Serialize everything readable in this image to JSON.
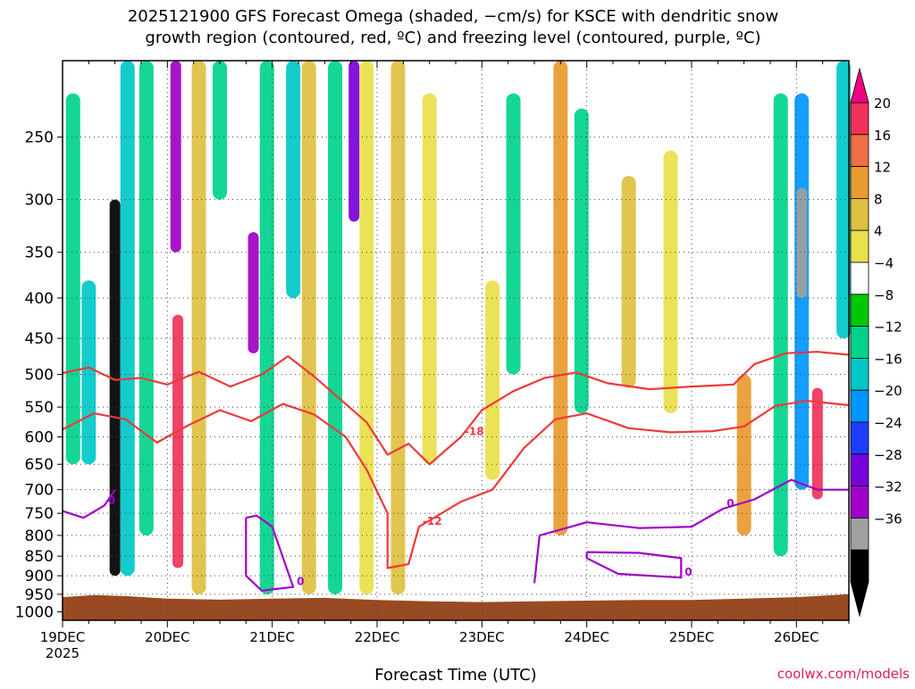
{
  "chart_data": {
    "type": "heatmap",
    "title_lines": [
      "2025121900 GFS Forecast Omega (shaded, −cm/s) for KSCE with dendritic snow",
      "growth region (contoured, red, ºC) and freezing level (contoured, purple, ºC)"
    ],
    "xlabel": "Forecast Time (UTC)",
    "x_ticks": [
      "19DEC",
      "20DEC",
      "21DEC",
      "22DEC",
      "23DEC",
      "24DEC",
      "25DEC",
      "26DEC"
    ],
    "x_year": "2025",
    "x_range_days": [
      19.0,
      26.5
    ],
    "y_ticks": [
      250,
      300,
      350,
      400,
      450,
      500,
      550,
      600,
      650,
      700,
      750,
      800,
      850,
      900,
      950,
      1000
    ],
    "y_range_hpa": [
      200,
      1025
    ],
    "y_scale": "log-pressure",
    "grid": "dotted",
    "colorbar": {
      "labels": [
        "20",
        "16",
        "12",
        "8",
        "4",
        "−4",
        "−8",
        "−12",
        "−16",
        "−20",
        "−24",
        "−28",
        "−32",
        "−36"
      ],
      "colors": [
        "#f0325a",
        "#f06e46",
        "#e99a2e",
        "#e0c040",
        "#eae04a",
        "#ffffff",
        "#00c800",
        "#00d28c",
        "#00c8c8",
        "#0096ff",
        "#1e3cff",
        "#7800dc",
        "#a000c8",
        "#a0a0a0",
        "#000000"
      ],
      "top_arrow_color": "#f00082",
      "bottom_arrow_color": "#000000"
    },
    "omega_series": [
      {
        "day": 19.1,
        "p_top": 220,
        "p_bot": 650,
        "value": -10
      },
      {
        "day": 19.25,
        "p_top": 380,
        "p_bot": 650,
        "value": -14
      },
      {
        "day": 19.5,
        "p_top": 300,
        "p_bot": 900,
        "value": -36
      },
      {
        "day": 19.62,
        "p_top": 200,
        "p_bot": 900,
        "value": -14
      },
      {
        "day": 19.8,
        "p_top": 200,
        "p_bot": 800,
        "value": -8
      },
      {
        "day": 20.08,
        "p_top": 200,
        "p_bot": 350,
        "value": -28
      },
      {
        "day": 20.1,
        "p_top": 420,
        "p_bot": 880,
        "value": 20
      },
      {
        "day": 20.3,
        "p_top": 200,
        "p_bot": 950,
        "value": 8
      },
      {
        "day": 20.5,
        "p_top": 200,
        "p_bot": 300,
        "value": -8
      },
      {
        "day": 20.82,
        "p_top": 330,
        "p_bot": 470,
        "value": -28
      },
      {
        "day": 20.95,
        "p_top": 200,
        "p_bot": 950,
        "value": -8
      },
      {
        "day": 21.2,
        "p_top": 200,
        "p_bot": 400,
        "value": -12
      },
      {
        "day": 21.35,
        "p_top": 200,
        "p_bot": 950,
        "value": 8
      },
      {
        "day": 21.6,
        "p_top": 200,
        "p_bot": 950,
        "value": -8
      },
      {
        "day": 21.78,
        "p_top": 200,
        "p_bot": 320,
        "value": -24
      },
      {
        "day": 21.9,
        "p_top": 200,
        "p_bot": 950,
        "value": 4
      },
      {
        "day": 22.2,
        "p_top": 200,
        "p_bot": 950,
        "value": 8
      },
      {
        "day": 22.5,
        "p_top": 220,
        "p_bot": 650,
        "value": 4
      },
      {
        "day": 23.1,
        "p_top": 380,
        "p_bot": 680,
        "value": 4
      },
      {
        "day": 23.3,
        "p_top": 220,
        "p_bot": 500,
        "value": -8
      },
      {
        "day": 23.75,
        "p_top": 200,
        "p_bot": 800,
        "value": 12
      },
      {
        "day": 23.95,
        "p_top": 230,
        "p_bot": 560,
        "value": -8
      },
      {
        "day": 24.4,
        "p_top": 280,
        "p_bot": 520,
        "value": 8
      },
      {
        "day": 24.8,
        "p_top": 260,
        "p_bot": 560,
        "value": 4
      },
      {
        "day": 25.5,
        "p_top": 500,
        "p_bot": 800,
        "value": 12
      },
      {
        "day": 25.85,
        "p_top": 220,
        "p_bot": 850,
        "value": -8
      },
      {
        "day": 26.05,
        "p_top": 220,
        "p_bot": 700,
        "value": -16
      },
      {
        "day": 26.05,
        "p_top": 290,
        "p_bot": 400,
        "value": -32
      },
      {
        "day": 26.2,
        "p_top": 520,
        "p_bot": 720,
        "value": 20
      },
      {
        "day": 26.45,
        "p_top": 200,
        "p_bot": 450,
        "value": -12
      }
    ],
    "contours": [
      {
        "label": "-18",
        "color": "#ee3a3a",
        "points": [
          [
            19.0,
            498
          ],
          [
            19.25,
            490
          ],
          [
            19.5,
            508
          ],
          [
            19.75,
            505
          ],
          [
            20.0,
            515
          ],
          [
            20.3,
            496
          ],
          [
            20.6,
            518
          ],
          [
            20.9,
            500
          ],
          [
            21.15,
            474
          ],
          [
            21.4,
            503
          ],
          [
            21.7,
            545
          ],
          [
            21.9,
            575
          ],
          [
            22.1,
            632
          ],
          [
            22.3,
            612
          ],
          [
            22.5,
            650
          ],
          [
            22.8,
            600
          ],
          [
            23.0,
            555
          ],
          [
            23.3,
            525
          ],
          [
            23.6,
            505
          ],
          [
            23.9,
            497
          ],
          [
            24.2,
            513
          ],
          [
            24.6,
            522
          ],
          [
            25.0,
            518
          ],
          [
            25.4,
            515
          ],
          [
            25.6,
            485
          ],
          [
            25.9,
            470
          ],
          [
            26.2,
            468
          ],
          [
            26.5,
            472
          ]
        ]
      },
      {
        "label": "-12",
        "color": "#ee3a3a",
        "points": [
          [
            19.0,
            587
          ],
          [
            19.3,
            560
          ],
          [
            19.6,
            570
          ],
          [
            19.9,
            610
          ],
          [
            20.2,
            580
          ],
          [
            20.5,
            555
          ],
          [
            20.8,
            573
          ],
          [
            21.1,
            545
          ],
          [
            21.4,
            562
          ],
          [
            21.7,
            600
          ],
          [
            21.9,
            660
          ],
          [
            22.1,
            750
          ],
          [
            22.1,
            880
          ],
          [
            22.3,
            870
          ],
          [
            22.4,
            780
          ],
          [
            22.8,
            725
          ],
          [
            23.1,
            700
          ],
          [
            23.4,
            620
          ],
          [
            23.7,
            570
          ],
          [
            24.0,
            560
          ],
          [
            24.4,
            585
          ],
          [
            24.8,
            592
          ],
          [
            25.2,
            590
          ],
          [
            25.5,
            582
          ],
          [
            25.8,
            548
          ],
          [
            26.1,
            540
          ],
          [
            26.5,
            547
          ]
        ]
      },
      {
        "label": "0",
        "color": "#a000c8",
        "points": [
          [
            19.0,
            745
          ],
          [
            19.2,
            760
          ],
          [
            19.4,
            733
          ],
          [
            19.5,
            700
          ]
        ]
      },
      {
        "label": "0",
        "color": "#a000c8",
        "points": [
          [
            20.75,
            760
          ],
          [
            20.75,
            900
          ],
          [
            20.9,
            940
          ],
          [
            21.2,
            930
          ],
          [
            21.0,
            780
          ],
          [
            20.85,
            755
          ],
          [
            20.75,
            760
          ]
        ]
      },
      {
        "label": "0",
        "color": "#a000c8",
        "points": [
          [
            23.5,
            920
          ],
          [
            23.55,
            800
          ],
          [
            24.0,
            770
          ],
          [
            24.5,
            783
          ],
          [
            25.0,
            780
          ],
          [
            25.3,
            740
          ],
          [
            25.6,
            720
          ],
          [
            25.95,
            680
          ],
          [
            26.2,
            700
          ],
          [
            26.5,
            700
          ]
        ]
      },
      {
        "label": "0",
        "color": "#a000c8",
        "points": [
          [
            24.0,
            840
          ],
          [
            24.5,
            842
          ],
          [
            24.9,
            855
          ],
          [
            24.9,
            905
          ],
          [
            24.3,
            895
          ],
          [
            24.0,
            855
          ],
          [
            24.0,
            840
          ]
        ]
      }
    ],
    "credit": "coolwx.com/models"
  }
}
